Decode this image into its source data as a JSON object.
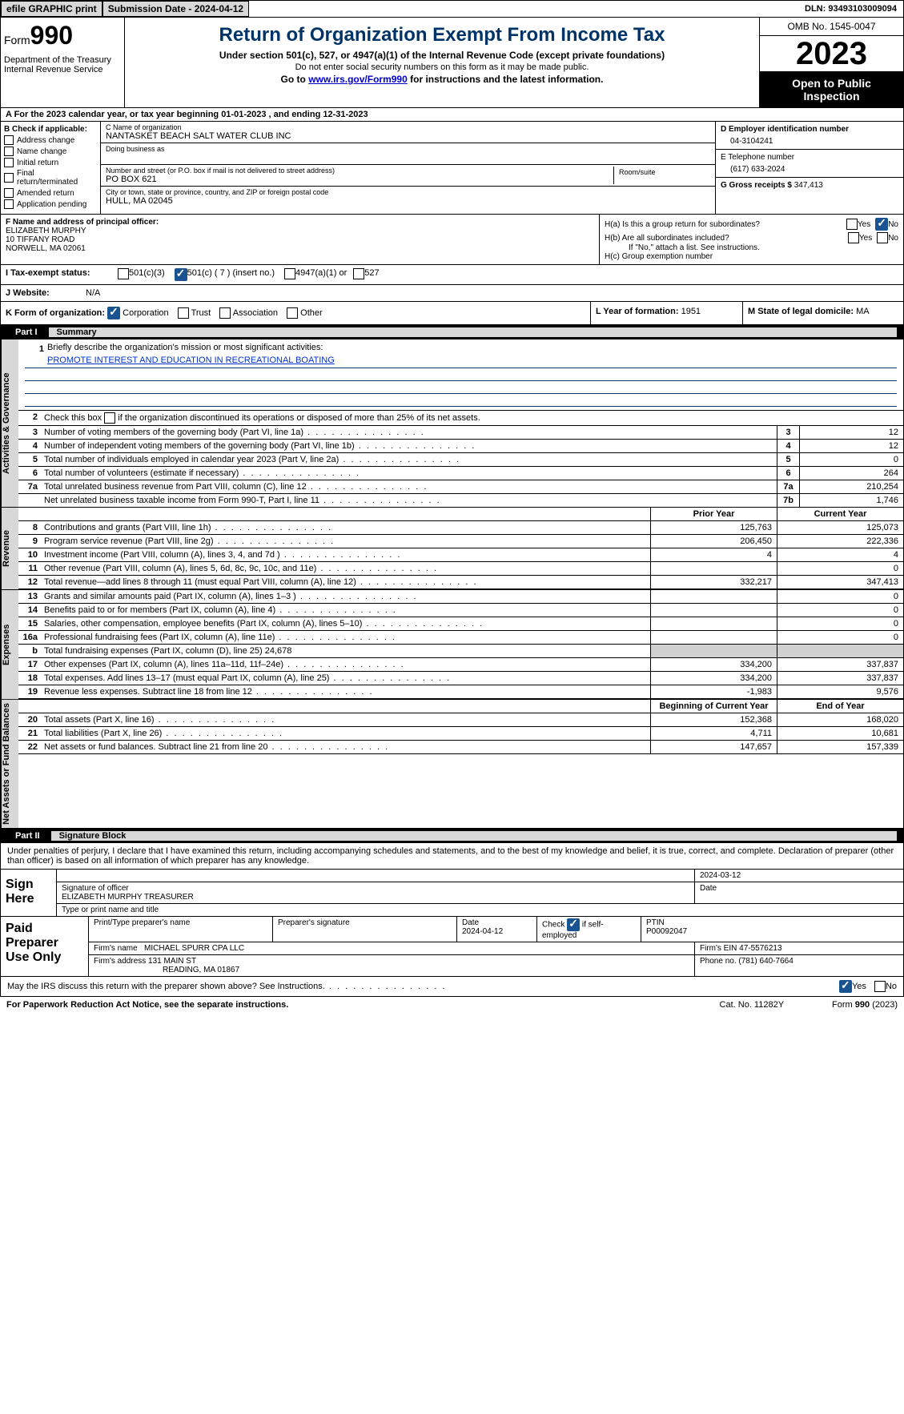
{
  "topbar": {
    "efile": "efile GRAPHIC print",
    "submission": "Submission Date - 2024-04-12",
    "dln": "DLN: 93493103009094"
  },
  "header": {
    "form_prefix": "Form",
    "form_num": "990",
    "title": "Return of Organization Exempt From Income Tax",
    "subtitle": "Under section 501(c), 527, or 4947(a)(1) of the Internal Revenue Code (except private foundations)",
    "sub2": "Do not enter social security numbers on this form as it may be made public.",
    "sub3_pre": "Go to ",
    "sub3_link": "www.irs.gov/Form990",
    "sub3_post": " for instructions and the latest information.",
    "dept": "Department of the Treasury\nInternal Revenue Service",
    "omb": "OMB No. 1545-0047",
    "year": "2023",
    "open_pub": "Open to Public Inspection"
  },
  "row_a": "A For the 2023 calendar year, or tax year beginning 01-01-2023   , and ending 12-31-2023",
  "box_b": {
    "hdr": "B Check if applicable:",
    "addr": "Address change",
    "name": "Name change",
    "init": "Initial return",
    "final": "Final return/terminated",
    "amend": "Amended return",
    "app": "Application pending"
  },
  "box_c": {
    "name_lbl": "C Name of organization",
    "name": "NANTASKET BEACH SALT WATER CLUB INC",
    "dba_lbl": "Doing business as",
    "addr_lbl": "Number and street (or P.O. box if mail is not delivered to street address)",
    "addr": "PO BOX 621",
    "room_lbl": "Room/suite",
    "city_lbl": "City or town, state or province, country, and ZIP or foreign postal code",
    "city": "HULL, MA  02045"
  },
  "box_d": {
    "lbl": "D Employer identification number",
    "val": "04-3104241"
  },
  "box_e": {
    "lbl": "E Telephone number",
    "val": "(617) 633-2024"
  },
  "box_g": {
    "lbl": "G Gross receipts $",
    "val": "347,413"
  },
  "box_f": {
    "lbl": "F  Name and address of principal officer:",
    "name": "ELIZABETH MURPHY",
    "addr1": "10 TIFFANY ROAD",
    "addr2": "NORWELL, MA  02061"
  },
  "box_h": {
    "ha_lbl": "H(a)  Is this a group return for subordinates?",
    "hb_lbl": "H(b)  Are all subordinates included?",
    "hb_note": "If \"No,\" attach a list. See instructions.",
    "hc_lbl": "H(c)  Group exemption number",
    "yes": "Yes",
    "no": "No"
  },
  "row_i": {
    "lbl": "I   Tax-exempt status:",
    "o1": "501(c)(3)",
    "o2": "501(c) ( 7 ) (insert no.)",
    "o3": "4947(a)(1) or",
    "o4": "527"
  },
  "row_j": {
    "lbl": "J   Website:",
    "val": "N/A"
  },
  "row_k": {
    "lbl": "K Form of organization:",
    "corp": "Corporation",
    "trust": "Trust",
    "assoc": "Association",
    "other": "Other"
  },
  "row_l": {
    "lbl": "L Year of formation:",
    "val": "1951"
  },
  "row_m": {
    "lbl": "M State of legal domicile:",
    "val": "MA"
  },
  "part1": {
    "num": "Part I",
    "title": "Summary"
  },
  "sidebar": {
    "gov": "Activities & Governance",
    "rev": "Revenue",
    "exp": "Expenses",
    "net": "Net Assets or Fund Balances"
  },
  "mission": {
    "num": "1",
    "lbl": "Briefly describe the organization's mission or most significant activities:",
    "text": "PROMOTE INTEREST AND EDUCATION IN RECREATIONAL BOATING"
  },
  "line2": {
    "num": "2",
    "text": "Check this box     if the organization discontinued its operations or disposed of more than 25% of its net assets."
  },
  "gov_lines": [
    {
      "num": "3",
      "text": "Number of voting members of the governing body (Part VI, line 1a)",
      "box": "3",
      "val": "12"
    },
    {
      "num": "4",
      "text": "Number of independent voting members of the governing body (Part VI, line 1b)",
      "box": "4",
      "val": "12"
    },
    {
      "num": "5",
      "text": "Total number of individuals employed in calendar year 2023 (Part V, line 2a)",
      "box": "5",
      "val": "0"
    },
    {
      "num": "6",
      "text": "Total number of volunteers (estimate if necessary)",
      "box": "6",
      "val": "264"
    },
    {
      "num": "7a",
      "text": "Total unrelated business revenue from Part VIII, column (C), line 12",
      "box": "7a",
      "val": "210,254"
    },
    {
      "num": "",
      "text": "Net unrelated business taxable income from Form 990-T, Part I, line 11",
      "box": "7b",
      "val": "1,746"
    }
  ],
  "col_hdr": {
    "prior": "Prior Year",
    "current": "Current Year"
  },
  "rev_lines": [
    {
      "num": "8",
      "text": "Contributions and grants (Part VIII, line 1h)",
      "v1": "125,763",
      "v2": "125,073"
    },
    {
      "num": "9",
      "text": "Program service revenue (Part VIII, line 2g)",
      "v1": "206,450",
      "v2": "222,336"
    },
    {
      "num": "10",
      "text": "Investment income (Part VIII, column (A), lines 3, 4, and 7d )",
      "v1": "4",
      "v2": "4"
    },
    {
      "num": "11",
      "text": "Other revenue (Part VIII, column (A), lines 5, 6d, 8c, 9c, 10c, and 11e)",
      "v1": "",
      "v2": "0"
    },
    {
      "num": "12",
      "text": "Total revenue—add lines 8 through 11 (must equal Part VIII, column (A), line 12)",
      "v1": "332,217",
      "v2": "347,413"
    }
  ],
  "exp_lines": [
    {
      "num": "13",
      "text": "Grants and similar amounts paid (Part IX, column (A), lines 1–3 )",
      "v1": "",
      "v2": "0"
    },
    {
      "num": "14",
      "text": "Benefits paid to or for members (Part IX, column (A), line 4)",
      "v1": "",
      "v2": "0"
    },
    {
      "num": "15",
      "text": "Salaries, other compensation, employee benefits (Part IX, column (A), lines 5–10)",
      "v1": "",
      "v2": "0"
    },
    {
      "num": "16a",
      "text": "Professional fundraising fees (Part IX, column (A), line 11e)",
      "v1": "",
      "v2": "0"
    },
    {
      "num": "b",
      "text": "Total fundraising expenses (Part IX, column (D), line 25) 24,678",
      "v1": "",
      "v2": "",
      "shade": true
    },
    {
      "num": "17",
      "text": "Other expenses (Part IX, column (A), lines 11a–11d, 11f–24e)",
      "v1": "334,200",
      "v2": "337,837"
    },
    {
      "num": "18",
      "text": "Total expenses. Add lines 13–17 (must equal Part IX, column (A), line 25)",
      "v1": "334,200",
      "v2": "337,837"
    },
    {
      "num": "19",
      "text": "Revenue less expenses. Subtract line 18 from line 12",
      "v1": "-1,983",
      "v2": "9,576"
    }
  ],
  "net_hdr": {
    "begin": "Beginning of Current Year",
    "end": "End of Year"
  },
  "net_lines": [
    {
      "num": "20",
      "text": "Total assets (Part X, line 16)",
      "v1": "152,368",
      "v2": "168,020"
    },
    {
      "num": "21",
      "text": "Total liabilities (Part X, line 26)",
      "v1": "4,711",
      "v2": "10,681"
    },
    {
      "num": "22",
      "text": "Net assets or fund balances. Subtract line 21 from line 20",
      "v1": "147,657",
      "v2": "157,339"
    }
  ],
  "part2": {
    "num": "Part II",
    "title": "Signature Block"
  },
  "sig_decl": "Under penalties of perjury, I declare that I have examined this return, including accompanying schedules and statements, and to the best of my knowledge and belief, it is true, correct, and complete. Declaration of preparer (other than officer) is based on all information of which preparer has any knowledge.",
  "sign": {
    "here": "Sign Here",
    "sig_lbl": "Signature of officer",
    "officer": "ELIZABETH MURPHY TREASURER",
    "type_lbl": "Type or print name and title",
    "date_lbl": "Date",
    "date": "2024-03-12"
  },
  "prep": {
    "hdr": "Paid Preparer Use Only",
    "name_lbl": "Print/Type preparer's name",
    "sig_lbl": "Preparer's signature",
    "date_lbl": "Date",
    "date": "2024-04-12",
    "check_lbl": "Check        if self-employed",
    "ptin_lbl": "PTIN",
    "ptin": "P00092047",
    "firm_name_lbl": "Firm's name",
    "firm_name": "MICHAEL SPURR CPA LLC",
    "firm_ein_lbl": "Firm's EIN",
    "firm_ein": "47-5576213",
    "firm_addr_lbl": "Firm's address",
    "firm_addr1": "131 MAIN ST",
    "firm_addr2": "READING, MA  01867",
    "phone_lbl": "Phone no.",
    "phone": "(781) 640-7664"
  },
  "discuss": {
    "text": "May the IRS discuss this return with the preparer shown above? See Instructions.",
    "yes": "Yes",
    "no": "No"
  },
  "footer": {
    "left": "For Paperwork Reduction Act Notice, see the separate instructions.",
    "mid": "Cat. No. 11282Y",
    "right": "Form 990 (2023)"
  }
}
